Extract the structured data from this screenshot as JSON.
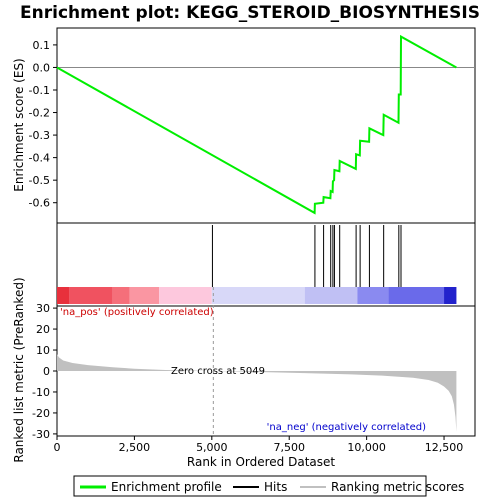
{
  "chart_data": {
    "type": "line",
    "title": "Enrichment plot: KEGG_STEROID_BIOSYNTHESIS",
    "top_panel": {
      "ylabel": "Enrichment score (ES)",
      "ylim": [
        -0.69,
        0.175
      ],
      "yticks": [
        0.1,
        0.0,
        -0.1,
        -0.2,
        -0.3,
        -0.4,
        -0.5,
        -0.6
      ],
      "ytick_labels": [
        "0.1",
        "0.0",
        "-0.1",
        "-0.2",
        "-0.3",
        "-0.4",
        "-0.5",
        "-0.6"
      ],
      "grid": false,
      "series": [
        {
          "name": "Enrichment profile",
          "color": "#00ee00",
          "x": [
            0,
            8320,
            8330,
            8600,
            8610,
            8830,
            8840,
            8900,
            8910,
            8950,
            8960,
            9120,
            9130,
            9650,
            9660,
            9780,
            9790,
            10080,
            10090,
            10540,
            10550,
            11030,
            11040,
            11100,
            11110,
            12900
          ],
          "y": [
            0.0,
            -0.645,
            -0.605,
            -0.6,
            -0.575,
            -0.58,
            -0.548,
            -0.552,
            -0.505,
            -0.5,
            -0.455,
            -0.46,
            -0.415,
            -0.45,
            -0.385,
            -0.39,
            -0.325,
            -0.33,
            -0.27,
            -0.3,
            -0.21,
            -0.245,
            -0.12,
            -0.12,
            0.137,
            0.0
          ]
        }
      ]
    },
    "hits": {
      "name": "Hits",
      "x": [
        5020,
        8330,
        8610,
        8840,
        8910,
        8960,
        9130,
        9660,
        9790,
        10090,
        10550,
        11040,
        11110
      ]
    },
    "color_bar": {
      "segments": [
        {
          "from": 0,
          "to": 400,
          "color": "#e8303c"
        },
        {
          "from": 400,
          "to": 1800,
          "color": "#f05260"
        },
        {
          "from": 1800,
          "to": 2350,
          "color": "#f56f7a"
        },
        {
          "from": 2350,
          "to": 3300,
          "color": "#fa96a2"
        },
        {
          "from": 3300,
          "to": 5000,
          "color": "#fdc8dd"
        },
        {
          "from": 5000,
          "to": 8000,
          "color": "#d8d8f8"
        },
        {
          "from": 8000,
          "to": 9700,
          "color": "#c0c0f4"
        },
        {
          "from": 9700,
          "to": 10700,
          "color": "#8a8af0"
        },
        {
          "from": 10700,
          "to": 12500,
          "color": "#6a6aea"
        },
        {
          "from": 12500,
          "to": 12900,
          "color": "#2222cc"
        }
      ]
    },
    "bottom_panel": {
      "ylabel": "Ranked list metric (PreRanked)",
      "xlabel": "Rank in Ordered Dataset",
      "xlim": [
        0,
        13500
      ],
      "ylim": [
        -31,
        31
      ],
      "xticks": [
        0,
        2500,
        5000,
        7500,
        10000,
        12500
      ],
      "xtick_labels": [
        "0",
        "2,500",
        "5,000",
        "7,500",
        "10,000",
        "12,500"
      ],
      "yticks": [
        30,
        20,
        10,
        0,
        -10,
        -20,
        -30
      ],
      "ytick_labels": [
        "30",
        "20",
        "10",
        "0",
        "-10",
        "-20",
        "-30"
      ],
      "series": [
        {
          "name": "Ranking metric scores",
          "color": "#c0c0c0",
          "x": [
            0,
            60,
            200,
            500,
            1000,
            1800,
            2500,
            3500,
            5049,
            6500,
            8000,
            9500,
            10500,
            11500,
            12000,
            12300,
            12500,
            12650,
            12750,
            12820,
            12870,
            12900
          ],
          "y": [
            8.0,
            6.5,
            5.0,
            3.8,
            2.8,
            1.8,
            1.1,
            0.5,
            0.0,
            -0.5,
            -1.0,
            -1.6,
            -2.2,
            -3.2,
            -4.3,
            -5.6,
            -7.4,
            -9.5,
            -12.0,
            -16.0,
            -22.0,
            -29.0
          ]
        }
      ],
      "annotations": {
        "pos_label": "'na_pos' (positively correlated)",
        "neg_label": "'na_neg' (negatively correlated)",
        "zero_cross": "Zero cross at 5049",
        "zero_cross_x": 5049,
        "pos_color": "#cc0000",
        "neg_color": "#0000cc"
      }
    },
    "legend": {
      "placement": "bottom",
      "entries": [
        {
          "label": "Enrichment profile",
          "color": "#00ee00"
        },
        {
          "label": "Hits",
          "color": "#000000"
        },
        {
          "label": "Ranking metric scores",
          "color": "#c0c0c0"
        }
      ]
    }
  }
}
